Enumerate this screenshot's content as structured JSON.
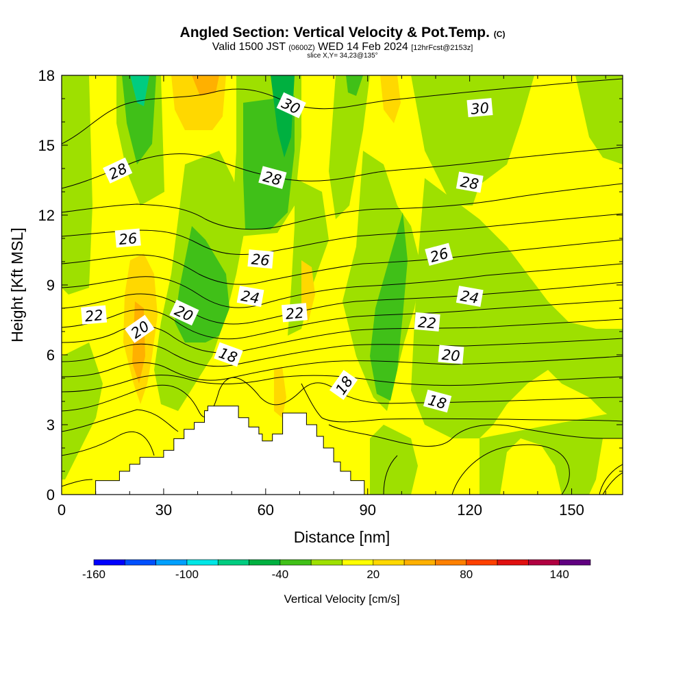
{
  "title": {
    "main": "Angled Section: Vertical Velocity & Pot.Temp.",
    "main_suffix": "(C)",
    "valid_prefix": "Valid 1500 JST",
    "valid_utc": "(0600Z)",
    "valid_date": "WED 14 Feb 2024",
    "forecast": "[12hrFcst@2153z]",
    "slice": "slice X,Y= 34,23@135°"
  },
  "chart_data": {
    "type": "contour",
    "xlabel": "Distance [nm]",
    "ylabel": "Height [Kft MSL]",
    "xlim": [
      0,
      165
    ],
    "ylim": [
      0,
      18
    ],
    "xticks": [
      0,
      30,
      60,
      90,
      120,
      150
    ],
    "yticks": [
      0,
      3,
      6,
      9,
      12,
      15,
      18
    ],
    "colorbar": {
      "label": "Vertical Velocity [cm/s]",
      "tick_labels": [
        -160,
        -100,
        -40,
        20,
        80,
        140
      ],
      "levels": [
        -160,
        -140,
        -120,
        -100,
        -80,
        -60,
        -40,
        -20,
        0,
        20,
        40,
        60,
        80,
        100,
        120,
        140,
        160
      ],
      "colors": [
        "#0000ff",
        "#0050ff",
        "#00a0ff",
        "#00e6e6",
        "#00cc80",
        "#00b040",
        "#40c018",
        "#9ee000",
        "#ffff00",
        "#ffd800",
        "#ffb000",
        "#ff8000",
        "#ff4000",
        "#e01010",
        "#b00040",
        "#600080"
      ]
    },
    "contour_labels": [
      {
        "value": "30",
        "x": 67.5,
        "y": 16.7
      },
      {
        "value": "30",
        "x": 123,
        "y": 16.6
      },
      {
        "value": "28",
        "x": 16.5,
        "y": 13.9
      },
      {
        "value": "28",
        "x": 62,
        "y": 13.6
      },
      {
        "value": "28",
        "x": 120,
        "y": 13.4
      },
      {
        "value": "26",
        "x": 19.5,
        "y": 11.0
      },
      {
        "value": "26",
        "x": 58.5,
        "y": 10.1
      },
      {
        "value": "26",
        "x": 111,
        "y": 10.3
      },
      {
        "value": "24",
        "x": 55.5,
        "y": 8.5
      },
      {
        "value": "24",
        "x": 120,
        "y": 8.5
      },
      {
        "value": "22",
        "x": 9.5,
        "y": 7.7
      },
      {
        "value": "22",
        "x": 68.5,
        "y": 7.8
      },
      {
        "value": "22",
        "x": 107.5,
        "y": 7.4
      },
      {
        "value": "20",
        "x": 23,
        "y": 7.1
      },
      {
        "value": "20",
        "x": 36,
        "y": 7.8
      },
      {
        "value": "20",
        "x": 114.5,
        "y": 6.0
      },
      {
        "value": "18",
        "x": 49,
        "y": 6.0
      },
      {
        "value": "18",
        "x": 83,
        "y": 4.7
      },
      {
        "value": "18",
        "x": 110.5,
        "y": 4.0
      }
    ],
    "terrain_profile": [
      [
        0,
        0
      ],
      [
        10,
        0
      ],
      [
        10,
        0.6
      ],
      [
        17,
        0.6
      ],
      [
        17,
        1.0
      ],
      [
        20,
        1.0
      ],
      [
        20,
        1.3
      ],
      [
        23,
        1.3
      ],
      [
        23,
        1.6
      ],
      [
        30,
        1.6
      ],
      [
        30,
        1.9
      ],
      [
        33,
        1.9
      ],
      [
        33,
        2.4
      ],
      [
        36,
        2.4
      ],
      [
        36,
        2.8
      ],
      [
        39,
        2.8
      ],
      [
        39,
        3.1
      ],
      [
        42,
        3.1
      ],
      [
        42,
        3.6
      ],
      [
        43,
        3.6
      ],
      [
        43,
        3.8
      ],
      [
        52,
        3.8
      ],
      [
        52,
        3.3
      ],
      [
        55,
        3.3
      ],
      [
        55,
        2.9
      ],
      [
        58,
        2.9
      ],
      [
        58,
        2.6
      ],
      [
        59,
        2.6
      ],
      [
        59,
        2.3
      ],
      [
        62,
        2.3
      ],
      [
        62,
        2.6
      ],
      [
        65,
        2.6
      ],
      [
        65,
        3.5
      ],
      [
        72,
        3.5
      ],
      [
        72,
        3.0
      ],
      [
        75,
        3.0
      ],
      [
        75,
        2.5
      ],
      [
        77,
        2.5
      ],
      [
        77,
        2.0
      ],
      [
        80,
        2.0
      ],
      [
        80,
        1.4
      ],
      [
        82,
        1.4
      ],
      [
        82,
        1.0
      ],
      [
        85,
        1.0
      ],
      [
        85,
        0.6
      ],
      [
        89,
        0.6
      ],
      [
        89,
        0
      ],
      [
        0,
        0
      ]
    ]
  }
}
